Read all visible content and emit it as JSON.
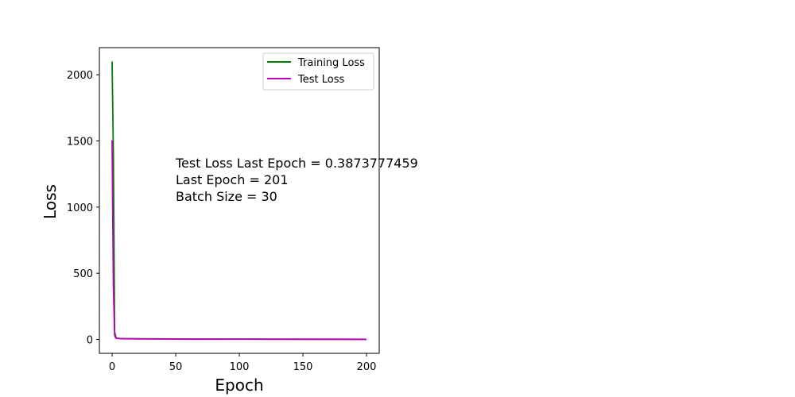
{
  "chart_data": {
    "type": "line",
    "title": "",
    "xlabel": "Epoch",
    "ylabel": "Loss",
    "xlim": [
      -10,
      210
    ],
    "ylim": [
      -105,
      2205
    ],
    "xticks": [
      0,
      50,
      100,
      150,
      200
    ],
    "yticks": [
      0,
      500,
      1000,
      1500,
      2000
    ],
    "grid": false,
    "legend_position": "upper right",
    "annotation": [
      "Test Loss Last Epoch = 0.3873777459",
      "Last Epoch = 201",
      "Batch Size = 30"
    ],
    "series": [
      {
        "name": "Training Loss",
        "color": "#008000",
        "x": [
          0,
          1,
          2,
          3,
          4,
          6,
          10,
          20,
          40,
          60,
          100,
          150,
          200
        ],
        "y": [
          2100,
          1400,
          60,
          15,
          9,
          7,
          6,
          5,
          4,
          3,
          2.5,
          2,
          1.5
        ]
      },
      {
        "name": "Test Loss",
        "color": "#bf00bf",
        "x": [
          0,
          1,
          2,
          3,
          4,
          6,
          10,
          20,
          40,
          60,
          100,
          150,
          200
        ],
        "y": [
          1505,
          400,
          30,
          10,
          8,
          6,
          5,
          4,
          3,
          2,
          1.5,
          1,
          0.39
        ]
      }
    ]
  }
}
